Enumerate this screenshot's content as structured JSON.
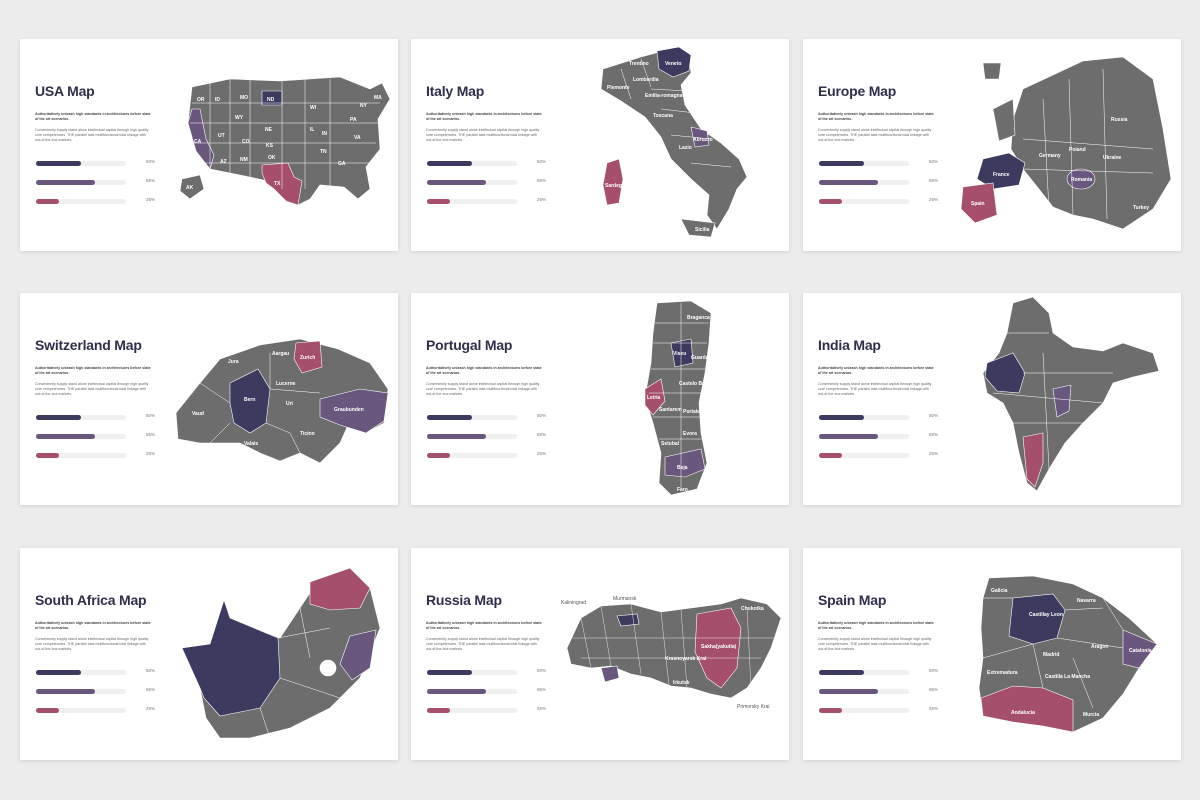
{
  "colors": {
    "navy": "#3c3a5e",
    "purple": "#6a577e",
    "pink": "#a64f6d",
    "gray": "#6d6d6d",
    "track": "#f0f0f0"
  },
  "common": {
    "subtitle": "Authoritatively unleash high standards in architectures before state of the art scenarios.",
    "description": "Conveniently supply stand alone intellectual capital through high quality core competencies. THE parallel task multifunctional total linkage with out-of-the-box markets.",
    "progress": [
      {
        "percent_label": "50%",
        "value": 0.5,
        "color": "#3c3a5e"
      },
      {
        "percent_label": "65%",
        "value": 0.65,
        "color": "#6a577e"
      },
      {
        "percent_label": "25%",
        "value": 0.25,
        "color": "#a64f6d"
      }
    ]
  },
  "slides": [
    {
      "title": "USA Map",
      "labels": [
        "ND",
        "OR",
        "ID",
        "MO",
        "WY",
        "NE",
        "UT",
        "CO",
        "KS",
        "CA",
        "AZ",
        "NM",
        "OK",
        "TX",
        "AK",
        "WI",
        "IL",
        "IN",
        "TN",
        "GA",
        "PA",
        "NY",
        "VA",
        "MA"
      ]
    },
    {
      "title": "Italy Map",
      "labels": [
        "Trentino",
        "Veneto",
        "Lombardia",
        "Piemonte",
        "Emilia-romagna",
        "Toscana",
        "Abruzzo",
        "Lazio",
        "Sardegna",
        "Sicilia"
      ]
    },
    {
      "title": "Europe Map",
      "labels": [
        "Russia",
        "Poland",
        "Germany",
        "France",
        "Spain",
        "Romania",
        "Turkey",
        "Ukraine"
      ]
    },
    {
      "title": "Switzerland Map",
      "labels": [
        "Zurich",
        "Aargau",
        "Jura",
        "Lucerne",
        "Bern",
        "Vaud",
        "Valais",
        "Ticino",
        "Graubunden",
        "Uri"
      ]
    },
    {
      "title": "Portugal Map",
      "labels": [
        "Viseu",
        "Braganca",
        "Guarda",
        "Castelo Branco",
        "Leiria",
        "Santarem",
        "Portalegre",
        "Evora",
        "Setubal",
        "Beja",
        "Faro"
      ]
    },
    {
      "title": "India Map",
      "labels": []
    },
    {
      "title": "South Africa Map",
      "labels": []
    },
    {
      "title": "Russia Map",
      "labels": [
        "Kaliningrad",
        "Murmansk",
        "Sakha(yakutia)",
        "Krasnoyarsk Krai",
        "Irkutsk",
        "Primorsky Krai",
        "Chukotka"
      ]
    },
    {
      "title": "Spain Map",
      "labels": [
        "Galicia",
        "Castillay Leon",
        "Aragon",
        "Catalonia",
        "Madrid",
        "Extremadura",
        "Castilla La Mancha",
        "Andalucia",
        "Murcia",
        "Navarra"
      ]
    }
  ]
}
